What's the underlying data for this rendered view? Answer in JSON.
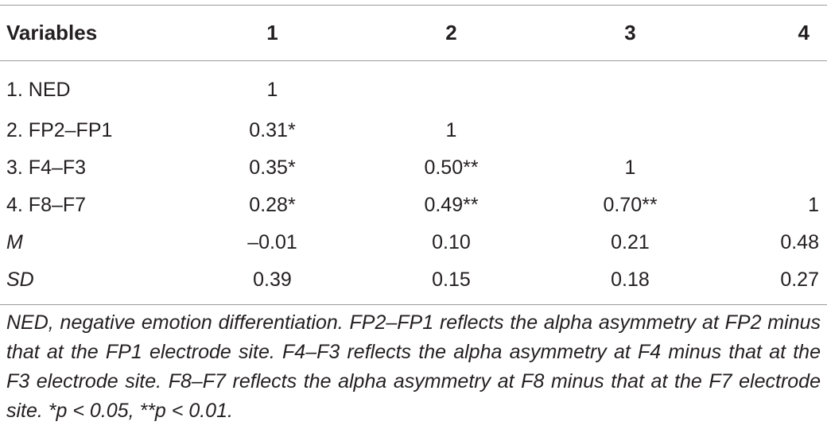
{
  "table": {
    "headers": [
      "Variables",
      "1",
      "2",
      "3",
      "4"
    ],
    "rows": [
      {
        "label": "1. NED",
        "cells": [
          "1",
          "",
          "",
          ""
        ]
      },
      {
        "label": "2. FP2–FP1",
        "cells": [
          "0.31*",
          "1",
          "",
          ""
        ]
      },
      {
        "label": "3. F4–F3",
        "cells": [
          "0.35*",
          "0.50**",
          "1",
          ""
        ]
      },
      {
        "label": "4. F8–F7",
        "cells": [
          "0.28*",
          "0.49**",
          "0.70**",
          "1"
        ]
      },
      {
        "label": "M",
        "cells": [
          "–0.01",
          "0.10",
          "0.21",
          "0.48"
        ]
      },
      {
        "label": "SD",
        "cells": [
          "0.39",
          "0.15",
          "0.18",
          "0.27"
        ]
      }
    ]
  },
  "note": "NED, negative emotion differentiation. FP2–FP1 reflects the alpha asymmetry at FP2 minus that at the FP1 electrode site. F4–F3 reflects the alpha asymmetry at F4 minus that at the F3 electrode site. F8–F7 reflects the alpha asymmetry at F8 minus that at the F7 electrode site. *p < 0.05, **p < 0.01."
}
